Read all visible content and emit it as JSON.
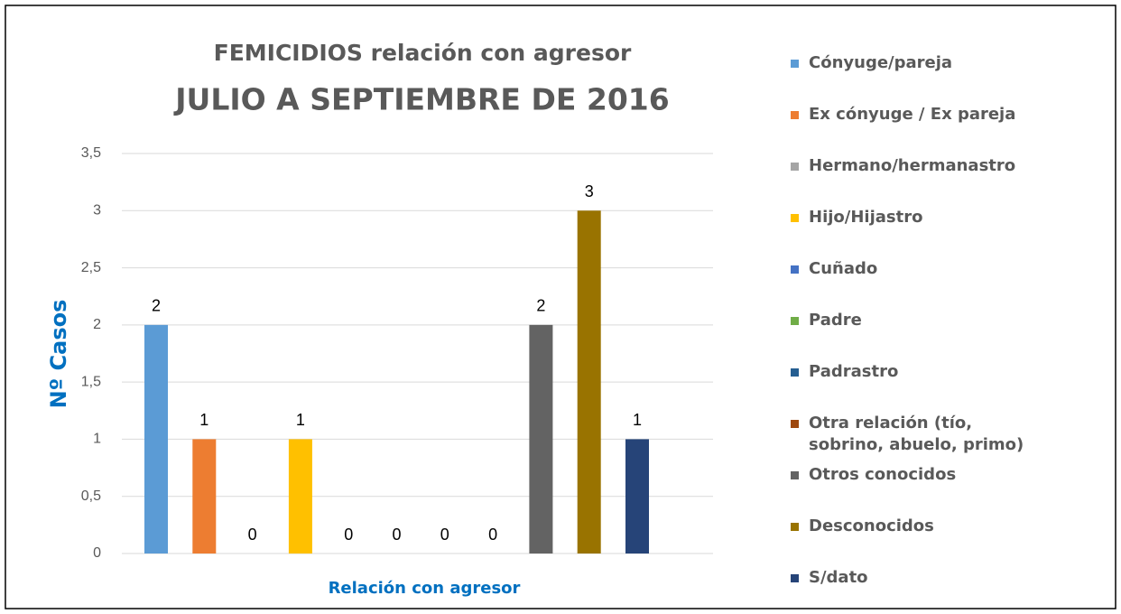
{
  "chart_data": {
    "type": "bar",
    "title": "FEMICIDIOS relación con agresor",
    "subtitle": "JULIO A SEPTIEMBRE DE 2016",
    "y_label": "Nº Casos",
    "x_label": "Relación con agresor",
    "categories": [
      null
    ],
    "series": [
      {
        "name": "Cónyuge/pareja",
        "color": "#5b9bd5",
        "values": [
          2
        ]
      },
      {
        "name": "Ex cónyuge / Ex pareja",
        "color": "#ed7d31",
        "values": [
          1
        ]
      },
      {
        "name": "Hermano/hermanastro",
        "color": "#a5a5a5",
        "values": [
          0
        ]
      },
      {
        "name": "Hijo/Hijastro",
        "color": "#ffc000",
        "values": [
          1
        ]
      },
      {
        "name": "Cuñado",
        "color": "#4472c4",
        "values": [
          0
        ]
      },
      {
        "name": "Padre",
        "color": "#70ad47",
        "values": [
          0
        ]
      },
      {
        "name": "Padrastro",
        "color": "#255e91",
        "values": [
          0
        ]
      },
      {
        "name": "Otra relación (tío, sobrino, abuelo, primo)",
        "color": "#9e480e",
        "values": [
          0
        ]
      },
      {
        "name": "Otros conocidos",
        "color": "#636363",
        "values": [
          2
        ]
      },
      {
        "name": "Desconocidos",
        "color": "#997300",
        "values": [
          3
        ]
      },
      {
        "name": "S/dato",
        "color": "#264478",
        "values": [
          1
        ]
      }
    ],
    "ylim": [
      0,
      3.5
    ],
    "yticks": [
      0,
      {
        "value": 0.5,
        "label": "0,5"
      },
      1,
      {
        "value": 1.5,
        "label": "1,5"
      },
      2,
      {
        "value": 2.5,
        "label": "2,5"
      },
      3,
      {
        "value": 3.5,
        "label": "3,5"
      }
    ],
    "grid": true,
    "legend": "right"
  }
}
